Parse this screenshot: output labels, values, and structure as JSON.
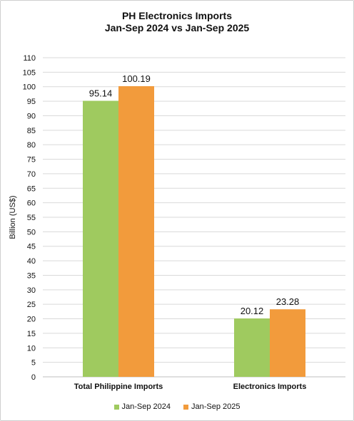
{
  "chart_data": {
    "type": "bar",
    "title": [
      "PH Electronics Imports",
      "Jan-Sep 2024 vs Jan-Sep 2025"
    ],
    "ylabel": "Billion (US$)",
    "xlabel": "",
    "ylim": [
      0,
      110
    ],
    "ytick_step": 5,
    "yticks": [
      "0",
      "5",
      "10",
      "15",
      "20",
      "25",
      "30",
      "35",
      "40",
      "45",
      "50",
      "55",
      "60",
      "65",
      "70",
      "75",
      "80",
      "85",
      "90",
      "95",
      "100",
      "105",
      "110"
    ],
    "grid": true,
    "legend_position": "bottom",
    "categories": [
      "Total Philippine Imports",
      "Electronics Imports"
    ],
    "series": [
      {
        "name": "Jan-Sep 2024",
        "color": "#9fca5f",
        "values": [
          95.14,
          20.12
        ],
        "labels": [
          "95.14",
          "20.12"
        ]
      },
      {
        "name": "Jan-Sep 2025",
        "color": "#f29b3c",
        "values": [
          100.19,
          23.28
        ],
        "labels": [
          "100.19",
          "23.28"
        ]
      }
    ]
  }
}
